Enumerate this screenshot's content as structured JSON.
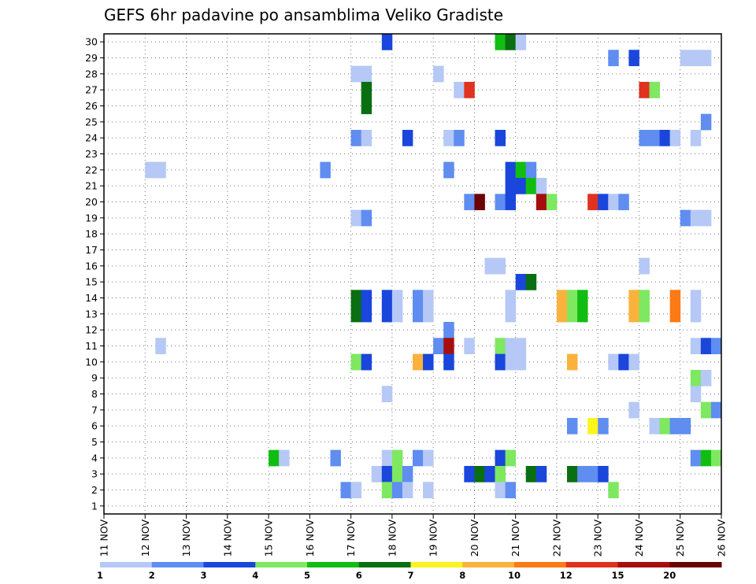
{
  "chart_data": {
    "type": "heatmap",
    "title": "GEFS 6hr padavine po ansamblima Veliko Gradiste",
    "xlabel": "",
    "ylabel": "",
    "x_tick_labels": [
      "11 NOV",
      "12 NOV",
      "13 NOV",
      "14 NOV",
      "15 NOV",
      "16 NOV",
      "17 NOV",
      "18 NOV",
      "19 NOV",
      "20 NOV",
      "21 NOV",
      "22 NOV",
      "23 NOV",
      "24 NOV",
      "25 NOV",
      "26 NOV"
    ],
    "x_unit": "day of November, 6-hour steps (4 per day)",
    "xlim": [
      11,
      26
    ],
    "y_tick_labels": [
      "1",
      "2",
      "3",
      "4",
      "5",
      "6",
      "7",
      "8",
      "9",
      "10",
      "11",
      "12",
      "13",
      "14",
      "15",
      "16",
      "17",
      "18",
      "19",
      "20",
      "21",
      "22",
      "23",
      "24",
      "25",
      "26",
      "27",
      "28",
      "29",
      "30"
    ],
    "ylim": [
      0.5,
      30.5
    ],
    "grid": true,
    "colorbar": {
      "position": "bottom",
      "boundaries": [
        1,
        2,
        3,
        4,
        5,
        6,
        7,
        8,
        10,
        12,
        15,
        20
      ],
      "labels": [
        "1",
        "2",
        "3",
        "4",
        "5",
        "6",
        "7",
        "8",
        "10",
        "12",
        "15",
        "20"
      ],
      "colors": [
        "#b5c8f6",
        "#5f8df0",
        "#1a46dc",
        "#7ee860",
        "#12bd12",
        "#0a6f12",
        "#fbf41e",
        "#fbb23c",
        "#fb7a14",
        "#e0321e",
        "#a60e0e",
        "#6a0404"
      ]
    },
    "cells": [
      {
        "member": 30,
        "t": [
          17.75
        ],
        "level": 3
      },
      {
        "member": 30,
        "t": [
          20.5
        ],
        "level": 5
      },
      {
        "member": 30,
        "t": [
          20.75
        ],
        "level": 6
      },
      {
        "member": 30,
        "t": [
          21.0
        ],
        "level": 1
      },
      {
        "member": 29,
        "t": [
          23.25
        ],
        "level": 2
      },
      {
        "member": 29,
        "t": [
          23.75
        ],
        "level": 3
      },
      {
        "member": 29,
        "t": [
          25.0,
          25.25,
          25.5
        ],
        "level": 1
      },
      {
        "member": 28,
        "t": [
          17.0,
          17.25
        ],
        "level": 1
      },
      {
        "member": 28,
        "t": [
          19.0
        ],
        "level": 1
      },
      {
        "member": 27,
        "t": [
          17.25
        ],
        "level": 6
      },
      {
        "member": 27,
        "t": [
          19.5
        ],
        "level": 1
      },
      {
        "member": 27,
        "t": [
          19.75
        ],
        "level": 10
      },
      {
        "member": 27,
        "t": [
          24.0
        ],
        "level": 10
      },
      {
        "member": 27,
        "t": [
          24.25
        ],
        "level": 4
      },
      {
        "member": 26,
        "t": [
          17.25
        ],
        "level": 6
      },
      {
        "member": 25,
        "t": [
          25.5
        ],
        "level": 2
      },
      {
        "member": 24,
        "t": [
          17.0
        ],
        "level": 2
      },
      {
        "member": 24,
        "t": [
          17.25
        ],
        "level": 1
      },
      {
        "member": 24,
        "t": [
          18.25
        ],
        "level": 3
      },
      {
        "member": 24,
        "t": [
          19.25
        ],
        "level": 1
      },
      {
        "member": 24,
        "t": [
          19.5
        ],
        "level": 2
      },
      {
        "member": 24,
        "t": [
          20.5
        ],
        "level": 3
      },
      {
        "member": 24,
        "t": [
          24.0,
          24.25
        ],
        "level": 2
      },
      {
        "member": 24,
        "t": [
          24.5
        ],
        "level": 3
      },
      {
        "member": 24,
        "t": [
          24.75
        ],
        "level": 1
      },
      {
        "member": 24,
        "t": [
          25.25
        ],
        "level": 1
      },
      {
        "member": 22,
        "t": [
          12.0,
          12.25
        ],
        "level": 1
      },
      {
        "member": 22,
        "t": [
          16.25
        ],
        "level": 2
      },
      {
        "member": 22,
        "t": [
          19.25
        ],
        "level": 2
      },
      {
        "member": 22,
        "t": [
          20.75
        ],
        "level": 3
      },
      {
        "member": 22,
        "t": [
          21.0
        ],
        "level": 5
      },
      {
        "member": 22,
        "t": [
          21.25
        ],
        "level": 2
      },
      {
        "member": 21,
        "t": [
          20.75,
          21.0
        ],
        "level": 3
      },
      {
        "member": 21,
        "t": [
          21.25
        ],
        "level": 5
      },
      {
        "member": 21,
        "t": [
          21.5
        ],
        "level": 1
      },
      {
        "member": 20,
        "t": [
          19.75
        ],
        "level": 2
      },
      {
        "member": 20,
        "t": [
          20.0
        ],
        "level": 12
      },
      {
        "member": 20,
        "t": [
          20.5
        ],
        "level": 2
      },
      {
        "member": 20,
        "t": [
          20.75
        ],
        "level": 3
      },
      {
        "member": 20,
        "t": [
          21.5
        ],
        "level": 11
      },
      {
        "member": 20,
        "t": [
          21.75
        ],
        "level": 4
      },
      {
        "member": 20,
        "t": [
          22.75
        ],
        "level": 10
      },
      {
        "member": 20,
        "t": [
          23.0
        ],
        "level": 3
      },
      {
        "member": 20,
        "t": [
          23.25
        ],
        "level": 1
      },
      {
        "member": 20,
        "t": [
          23.5
        ],
        "level": 2
      },
      {
        "member": 19,
        "t": [
          17.0
        ],
        "level": 1
      },
      {
        "member": 19,
        "t": [
          17.25
        ],
        "level": 2
      },
      {
        "member": 19,
        "t": [
          25.0
        ],
        "level": 2
      },
      {
        "member": 19,
        "t": [
          25.25,
          25.5
        ],
        "level": 1
      },
      {
        "member": 16,
        "t": [
          20.25,
          20.5
        ],
        "level": 1
      },
      {
        "member": 16,
        "t": [
          24.0
        ],
        "level": 1
      },
      {
        "member": 15,
        "t": [
          21.0
        ],
        "level": 3
      },
      {
        "member": 15,
        "t": [
          21.25
        ],
        "level": 6
      },
      {
        "member": 14,
        "t": [
          17.0
        ],
        "level": 6
      },
      {
        "member": 14,
        "t": [
          17.25
        ],
        "level": 3
      },
      {
        "member": 14,
        "t": [
          17.75
        ],
        "level": 3
      },
      {
        "member": 14,
        "t": [
          18.0
        ],
        "level": 1
      },
      {
        "member": 14,
        "t": [
          18.5
        ],
        "level": 2
      },
      {
        "member": 14,
        "t": [
          18.75
        ],
        "level": 1
      },
      {
        "member": 14,
        "t": [
          20.75
        ],
        "level": 1
      },
      {
        "member": 14,
        "t": [
          22.0
        ],
        "level": 8
      },
      {
        "member": 14,
        "t": [
          22.25
        ],
        "level": 4
      },
      {
        "member": 14,
        "t": [
          22.5
        ],
        "level": 5
      },
      {
        "member": 14,
        "t": [
          23.75
        ],
        "level": 8
      },
      {
        "member": 14,
        "t": [
          24.0
        ],
        "level": 4
      },
      {
        "member": 14,
        "t": [
          24.75
        ],
        "level": 9
      },
      {
        "member": 14,
        "t": [
          25.25
        ],
        "level": 1
      },
      {
        "member": 13,
        "t": [
          17.0
        ],
        "level": 6
      },
      {
        "member": 13,
        "t": [
          17.25
        ],
        "level": 3
      },
      {
        "member": 13,
        "t": [
          17.75
        ],
        "level": 3
      },
      {
        "member": 13,
        "t": [
          18.0
        ],
        "level": 1
      },
      {
        "member": 13,
        "t": [
          18.5
        ],
        "level": 2
      },
      {
        "member": 13,
        "t": [
          18.75
        ],
        "level": 1
      },
      {
        "member": 13,
        "t": [
          20.75
        ],
        "level": 1
      },
      {
        "member": 13,
        "t": [
          22.0
        ],
        "level": 8
      },
      {
        "member": 13,
        "t": [
          22.25
        ],
        "level": 4
      },
      {
        "member": 13,
        "t": [
          22.5
        ],
        "level": 5
      },
      {
        "member": 13,
        "t": [
          23.75
        ],
        "level": 8
      },
      {
        "member": 13,
        "t": [
          24.0
        ],
        "level": 4
      },
      {
        "member": 13,
        "t": [
          24.75
        ],
        "level": 9
      },
      {
        "member": 13,
        "t": [
          25.25
        ],
        "level": 1
      },
      {
        "member": 12,
        "t": [
          19.25
        ],
        "level": 2
      },
      {
        "member": 11,
        "t": [
          12.25
        ],
        "level": 1
      },
      {
        "member": 11,
        "t": [
          19.0
        ],
        "level": 2
      },
      {
        "member": 11,
        "t": [
          19.25
        ],
        "level": 11
      },
      {
        "member": 11,
        "t": [
          19.75
        ],
        "level": 1
      },
      {
        "member": 11,
        "t": [
          20.5
        ],
        "level": 4
      },
      {
        "member": 11,
        "t": [
          20.75,
          21.0
        ],
        "level": 1
      },
      {
        "member": 11,
        "t": [
          25.25
        ],
        "level": 1
      },
      {
        "member": 11,
        "t": [
          25.5
        ],
        "level": 3
      },
      {
        "member": 11,
        "t": [
          25.75
        ],
        "level": 2
      },
      {
        "member": 10,
        "t": [
          17.0
        ],
        "level": 4
      },
      {
        "member": 10,
        "t": [
          17.25
        ],
        "level": 3
      },
      {
        "member": 10,
        "t": [
          18.5
        ],
        "level": 8
      },
      {
        "member": 10,
        "t": [
          18.75
        ],
        "level": 3
      },
      {
        "member": 10,
        "t": [
          19.25
        ],
        "level": 3
      },
      {
        "member": 10,
        "t": [
          20.5
        ],
        "level": 3
      },
      {
        "member": 10,
        "t": [
          20.75,
          21.0
        ],
        "level": 1
      },
      {
        "member": 10,
        "t": [
          22.25
        ],
        "level": 8
      },
      {
        "member": 10,
        "t": [
          23.25
        ],
        "level": 1
      },
      {
        "member": 10,
        "t": [
          23.5
        ],
        "level": 3
      },
      {
        "member": 10,
        "t": [
          23.75
        ],
        "level": 1
      },
      {
        "member": 9,
        "t": [
          25.25
        ],
        "level": 4
      },
      {
        "member": 9,
        "t": [
          25.5
        ],
        "level": 1
      },
      {
        "member": 8,
        "t": [
          17.75
        ],
        "level": 1
      },
      {
        "member": 8,
        "t": [
          25.25
        ],
        "level": 1
      },
      {
        "member": 7,
        "t": [
          23.75
        ],
        "level": 1
      },
      {
        "member": 7,
        "t": [
          25.5
        ],
        "level": 4
      },
      {
        "member": 7,
        "t": [
          25.75
        ],
        "level": 2
      },
      {
        "member": 6,
        "t": [
          22.25
        ],
        "level": 2
      },
      {
        "member": 6,
        "t": [
          22.75
        ],
        "level": 7
      },
      {
        "member": 6,
        "t": [
          23.0
        ],
        "level": 2
      },
      {
        "member": 6,
        "t": [
          24.25
        ],
        "level": 1
      },
      {
        "member": 6,
        "t": [
          24.5
        ],
        "level": 4
      },
      {
        "member": 6,
        "t": [
          24.75,
          25.0
        ],
        "level": 2
      },
      {
        "member": 4,
        "t": [
          15.0
        ],
        "level": 5
      },
      {
        "member": 4,
        "t": [
          15.25
        ],
        "level": 1
      },
      {
        "member": 4,
        "t": [
          16.5
        ],
        "level": 2
      },
      {
        "member": 4,
        "t": [
          17.75
        ],
        "level": 1
      },
      {
        "member": 4,
        "t": [
          18.0
        ],
        "level": 4
      },
      {
        "member": 4,
        "t": [
          18.5
        ],
        "level": 2
      },
      {
        "member": 4,
        "t": [
          18.75
        ],
        "level": 1
      },
      {
        "member": 4,
        "t": [
          20.5
        ],
        "level": 3
      },
      {
        "member": 4,
        "t": [
          20.75
        ],
        "level": 4
      },
      {
        "member": 4,
        "t": [
          25.25
        ],
        "level": 2
      },
      {
        "member": 4,
        "t": [
          25.5
        ],
        "level": 5
      },
      {
        "member": 4,
        "t": [
          25.75
        ],
        "level": 4
      },
      {
        "member": 3,
        "t": [
          17.5
        ],
        "level": 1
      },
      {
        "member": 3,
        "t": [
          17.75
        ],
        "level": 3
      },
      {
        "member": 3,
        "t": [
          18.0
        ],
        "level": 4
      },
      {
        "member": 3,
        "t": [
          18.25
        ],
        "level": 2
      },
      {
        "member": 3,
        "t": [
          19.75
        ],
        "level": 3
      },
      {
        "member": 3,
        "t": [
          20.0
        ],
        "level": 6
      },
      {
        "member": 3,
        "t": [
          20.25
        ],
        "level": 3
      },
      {
        "member": 3,
        "t": [
          20.5
        ],
        "level": 4
      },
      {
        "member": 3,
        "t": [
          21.25
        ],
        "level": 6
      },
      {
        "member": 3,
        "t": [
          21.5
        ],
        "level": 3
      },
      {
        "member": 3,
        "t": [
          22.25
        ],
        "level": 6
      },
      {
        "member": 3,
        "t": [
          22.5,
          22.75
        ],
        "level": 2
      },
      {
        "member": 3,
        "t": [
          23.0
        ],
        "level": 3
      },
      {
        "member": 2,
        "t": [
          16.75
        ],
        "level": 2
      },
      {
        "member": 2,
        "t": [
          17.0
        ],
        "level": 1
      },
      {
        "member": 2,
        "t": [
          17.75
        ],
        "level": 4
      },
      {
        "member": 2,
        "t": [
          18.0
        ],
        "level": 2
      },
      {
        "member": 2,
        "t": [
          18.25
        ],
        "level": 1
      },
      {
        "member": 2,
        "t": [
          18.75
        ],
        "level": 1
      },
      {
        "member": 2,
        "t": [
          20.5
        ],
        "level": 1
      },
      {
        "member": 2,
        "t": [
          20.75
        ],
        "level": 2
      },
      {
        "member": 2,
        "t": [
          23.25
        ],
        "level": 4
      }
    ]
  }
}
